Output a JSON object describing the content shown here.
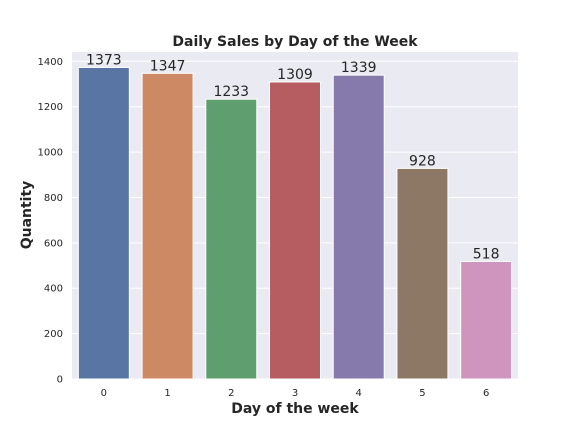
{
  "chart_data": {
    "type": "bar",
    "title": "Daily Sales by Day of the Week",
    "xlabel": "Day of the week",
    "ylabel": "Quantity",
    "categories": [
      "0",
      "1",
      "2",
      "3",
      "4",
      "5",
      "6"
    ],
    "values": [
      1373,
      1347,
      1233,
      1309,
      1339,
      928,
      518
    ],
    "data_labels": [
      "1373",
      "1347",
      "1233",
      "1309",
      "1339",
      "928",
      "518"
    ],
    "yticks": [
      0,
      200,
      400,
      600,
      800,
      1000,
      1200,
      1400
    ],
    "ylim": [
      0,
      1441
    ],
    "grid": true,
    "colors": {
      "plot_background": "#eaeaf2",
      "grid": "#ffffff",
      "bars": [
        "#5975a4",
        "#cc8963",
        "#5f9e6e",
        "#b55d60",
        "#857aab",
        "#8d7866",
        "#d095bf"
      ]
    }
  }
}
